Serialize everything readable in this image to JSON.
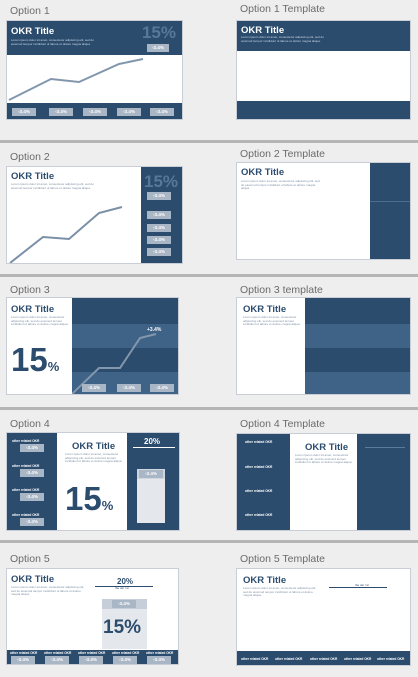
{
  "options": [
    {
      "label": "Option 1"
    },
    {
      "label": "Option 2"
    },
    {
      "label": "Option 3"
    },
    {
      "label": "Option 4"
    },
    {
      "label": "Option 5"
    }
  ],
  "templates": [
    {
      "label": "Option 1 Template"
    },
    {
      "label": "Option 2 Template"
    },
    {
      "label": "Option 3 template"
    },
    {
      "label": "Option 4 Template"
    },
    {
      "label": "Option 5 Template"
    }
  ],
  "slide": {
    "title": "OKR Title",
    "body": "Lorem ipsum dolor sit amet, consectetur adipiscing elit, sed do eiusmod tempor incididunt ut labore et dolore magna aliqua.",
    "big_value": "15",
    "percent_sign": "%",
    "big_percent": "15%",
    "small_percent": "20%",
    "delta": "-3.4%",
    "delta_up": "+3.4%",
    "other_okr": "other related OKR",
    "template_other_okr": "other related OKR",
    "tiny_label": "the okr / kr"
  },
  "colors": {
    "navy": "#2c4c6e",
    "pill": "#a9b6c5",
    "line": "#8297ad"
  }
}
